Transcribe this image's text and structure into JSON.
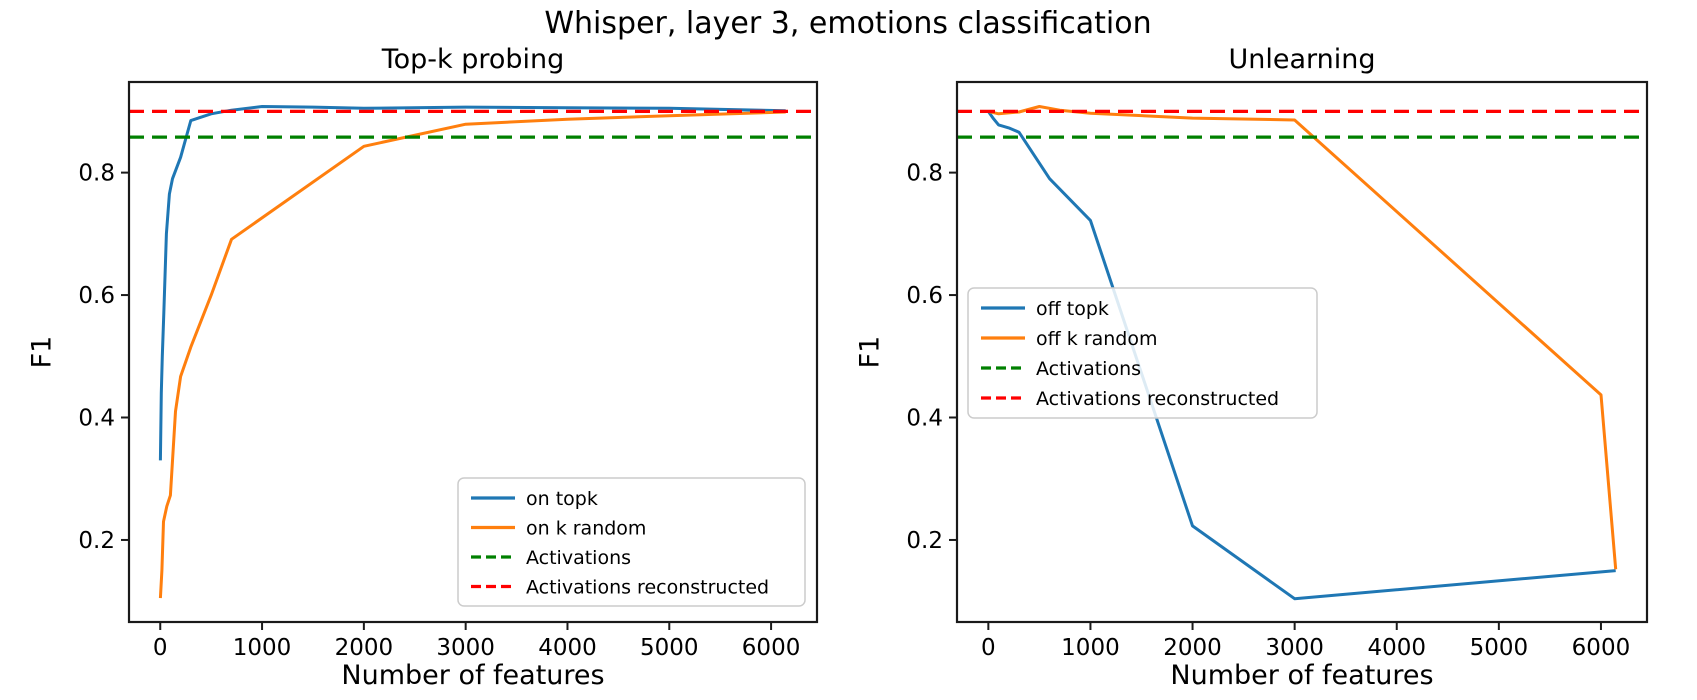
{
  "figure": {
    "title": "Whisper, layer 3, emotions classification",
    "background": "#ffffff"
  },
  "colors": {
    "blue": "#1f77b4",
    "orange": "#ff7f0e",
    "green": "#008000",
    "red": "#ff0000",
    "axis": "#1a1a1a",
    "legend_border": "#cccccc",
    "legend_bg": "rgba(255,255,255,0.85)"
  },
  "chart_data": [
    {
      "type": "line",
      "title": "Top-k probing",
      "xlabel": "Number of features",
      "ylabel": "F1",
      "xlim": [
        -307,
        6451
      ],
      "ylim": [
        0.066,
        0.948
      ],
      "xticks": [
        0,
        1000,
        2000,
        3000,
        4000,
        5000,
        6000
      ],
      "yticks": [
        0.2,
        0.4,
        0.6,
        0.8
      ],
      "grid": false,
      "legend_position": "lower right",
      "series": [
        {
          "name": "on topk",
          "color": "blue",
          "style": "solid",
          "points": [
            [
              1,
              0.33
            ],
            [
              10,
              0.44
            ],
            [
              20,
              0.5
            ],
            [
              35,
              0.57
            ],
            [
              60,
              0.7
            ],
            [
              90,
              0.765
            ],
            [
              120,
              0.79
            ],
            [
              200,
              0.825
            ],
            [
              300,
              0.885
            ],
            [
              500,
              0.896
            ],
            [
              700,
              0.902
            ],
            [
              1000,
              0.908
            ],
            [
              1500,
              0.907
            ],
            [
              2000,
              0.905
            ],
            [
              3000,
              0.907
            ],
            [
              4000,
              0.906
            ],
            [
              5000,
              0.905
            ],
            [
              6144,
              0.901
            ]
          ]
        },
        {
          "name": "on k random",
          "color": "orange",
          "style": "solid",
          "points": [
            [
              1,
              0.105
            ],
            [
              16,
              0.15
            ],
            [
              32,
              0.23
            ],
            [
              64,
              0.255
            ],
            [
              100,
              0.273
            ],
            [
              150,
              0.41
            ],
            [
              200,
              0.467
            ],
            [
              300,
              0.515
            ],
            [
              500,
              0.6
            ],
            [
              700,
              0.691
            ],
            [
              2000,
              0.843
            ],
            [
              3000,
              0.879
            ],
            [
              4000,
              0.887
            ],
            [
              5000,
              0.893
            ],
            [
              6144,
              0.899
            ]
          ]
        },
        {
          "name": "Activations",
          "color": "green",
          "style": "dashed",
          "y": 0.858
        },
        {
          "name": "Activations reconstructed",
          "color": "red",
          "style": "dashed",
          "y": 0.9
        }
      ]
    },
    {
      "type": "line",
      "title": "Unlearning",
      "xlabel": "Number of features",
      "ylabel": "F1",
      "xlim": [
        -307,
        6451
      ],
      "ylim": [
        0.066,
        0.948
      ],
      "xticks": [
        0,
        1000,
        2000,
        3000,
        4000,
        5000,
        6000
      ],
      "yticks": [
        0.2,
        0.4,
        0.6,
        0.8
      ],
      "grid": false,
      "legend_position": "center left",
      "series": [
        {
          "name": "off topk",
          "color": "blue",
          "style": "solid",
          "points": [
            [
              0,
              0.9
            ],
            [
              50,
              0.888
            ],
            [
              100,
              0.878
            ],
            [
              200,
              0.873
            ],
            [
              300,
              0.866
            ],
            [
              600,
              0.79
            ],
            [
              1000,
              0.722
            ],
            [
              2000,
              0.223
            ],
            [
              3000,
              0.104
            ],
            [
              6144,
              0.15
            ]
          ]
        },
        {
          "name": "off k random",
          "color": "orange",
          "style": "solid",
          "points": [
            [
              0,
              0.9
            ],
            [
              100,
              0.896
            ],
            [
              300,
              0.899
            ],
            [
              500,
              0.908
            ],
            [
              700,
              0.902
            ],
            [
              1000,
              0.897
            ],
            [
              2000,
              0.889
            ],
            [
              3000,
              0.886
            ],
            [
              6000,
              0.437
            ],
            [
              6144,
              0.152
            ]
          ]
        },
        {
          "name": "Activations",
          "color": "green",
          "style": "dashed",
          "y": 0.858
        },
        {
          "name": "Activations reconstructed",
          "color": "red",
          "style": "dashed",
          "y": 0.9
        }
      ]
    }
  ]
}
